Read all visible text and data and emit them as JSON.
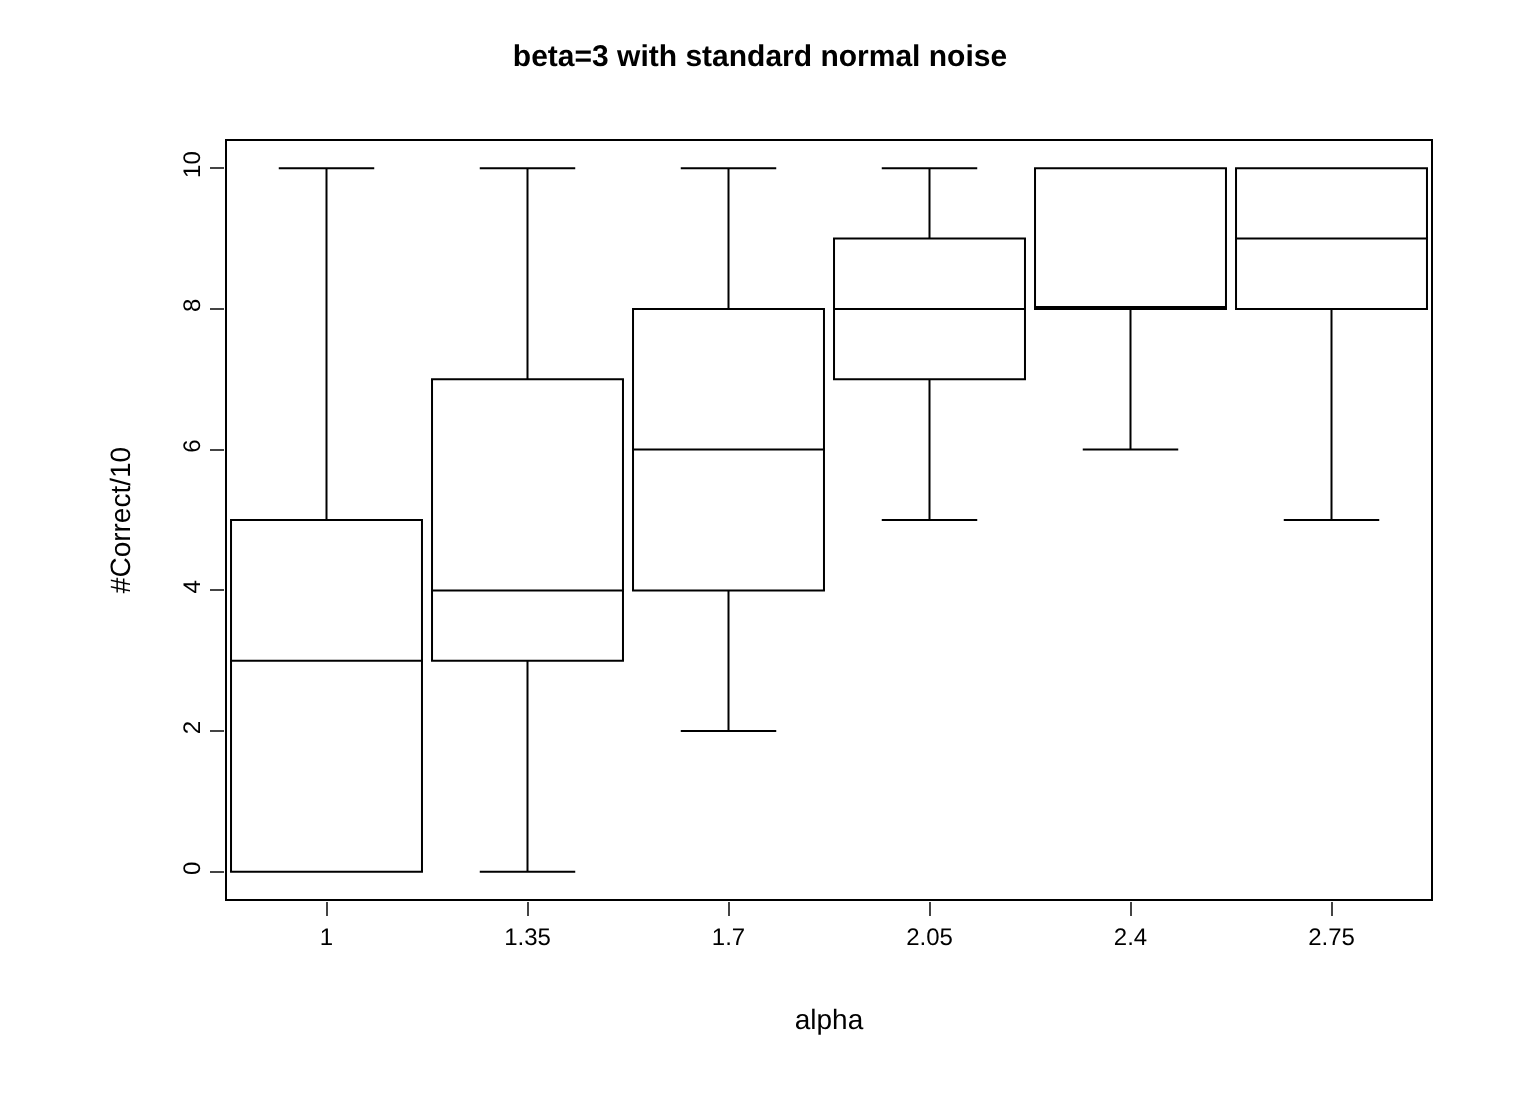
{
  "chart_data": {
    "type": "box",
    "title": "beta=3 with standard normal noise",
    "xlabel": "alpha",
    "ylabel": "#Correct/10",
    "categories": [
      "1",
      "1.35",
      "1.7",
      "2.05",
      "2.4",
      "2.75"
    ],
    "boxes": [
      {
        "low": 0,
        "q1": 0,
        "median": 3,
        "q3": 5,
        "high": 10
      },
      {
        "low": 0,
        "q1": 3,
        "median": 4,
        "q3": 7,
        "high": 10
      },
      {
        "low": 2,
        "q1": 4,
        "median": 6,
        "q3": 8,
        "high": 10
      },
      {
        "low": 5,
        "q1": 7,
        "median": 8,
        "q3": 9,
        "high": 10
      },
      {
        "low": 6,
        "q1": 8,
        "median": 8,
        "q3": 10,
        "high": 10
      },
      {
        "low": 5,
        "q1": 8,
        "median": 9,
        "q3": 10,
        "high": 10
      }
    ],
    "color": "#000000",
    "ylim": [
      -0.4,
      10.4
    ],
    "yticks": [
      0,
      2,
      4,
      6,
      8,
      10
    ],
    "grid": false,
    "legend": false
  }
}
